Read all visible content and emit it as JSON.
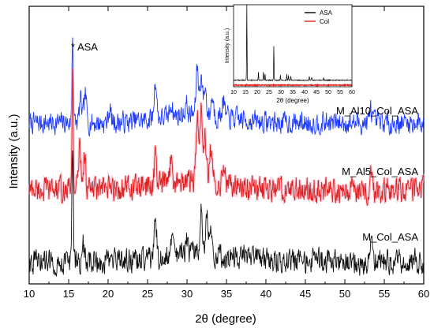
{
  "chart_data": {
    "type": "line",
    "xlabel": "2θ (degree)",
    "ylabel": "Intensity (a.u.)",
    "xlim": [
      10,
      60
    ],
    "xticks": [
      10,
      15,
      20,
      25,
      30,
      35,
      40,
      45,
      50,
      55,
      60
    ],
    "annotation": "* ASA",
    "series": [
      {
        "name": "M_Al10_Col_ASA",
        "color": "#1f3bff",
        "baseline": 0.58,
        "noise": 0.035,
        "peaks": [
          [
            15.5,
            0.32
          ],
          [
            16.5,
            0.08
          ],
          [
            17.1,
            0.1
          ],
          [
            20.2,
            0.05
          ],
          [
            26.0,
            0.14
          ],
          [
            28.0,
            0.05
          ],
          [
            29.9,
            0.04
          ],
          [
            31.3,
            0.17
          ],
          [
            31.8,
            0.14
          ],
          [
            32.3,
            0.1
          ],
          [
            33.2,
            0.07
          ],
          [
            34.6,
            0.06
          ],
          [
            53.3,
            0.05
          ]
        ]
      },
      {
        "name": "M_Al5_Col_ASA",
        "color": "#e02020",
        "baseline": 0.34,
        "noise": 0.04,
        "peaks": [
          [
            15.5,
            0.42
          ],
          [
            16.4,
            0.15
          ],
          [
            17.0,
            0.12
          ],
          [
            26.0,
            0.1
          ],
          [
            28.0,
            0.1
          ],
          [
            31.3,
            0.22
          ],
          [
            31.8,
            0.28
          ],
          [
            32.3,
            0.15
          ],
          [
            33.0,
            0.12
          ],
          [
            34.6,
            0.08
          ],
          [
            53.3,
            0.06
          ]
        ]
      },
      {
        "name": "M_Col_ASA",
        "color": "#111111",
        "baseline": 0.08,
        "noise": 0.04,
        "peaks": [
          [
            15.5,
            0.42
          ],
          [
            16.8,
            0.06
          ],
          [
            26.0,
            0.12
          ],
          [
            28.1,
            0.06
          ],
          [
            30.0,
            0.05
          ],
          [
            31.8,
            0.18
          ],
          [
            32.5,
            0.15
          ],
          [
            33.0,
            0.1
          ],
          [
            53.3,
            0.06
          ]
        ]
      }
    ],
    "inset": {
      "type": "line",
      "xlabel": "2θ (degree)",
      "ylabel": "Intensity (a.u.)",
      "xlim": [
        10,
        60
      ],
      "xticks": [
        10,
        15,
        20,
        25,
        30,
        35,
        40,
        45,
        50,
        55,
        60
      ],
      "legend": "top-right",
      "series": [
        {
          "name": "ASA",
          "color": "#000000",
          "baseline": 0.08,
          "peaks": [
            [
              15.6,
              0.92
            ],
            [
              20.5,
              0.1
            ],
            [
              22.6,
              0.1
            ],
            [
              23.3,
              0.08
            ],
            [
              27.0,
              0.42
            ],
            [
              29.8,
              0.06
            ],
            [
              32.5,
              0.08
            ],
            [
              33.2,
              0.06
            ],
            [
              34.2,
              0.05
            ],
            [
              42.0,
              0.05
            ],
            [
              43.0,
              0.04
            ],
            [
              48.0,
              0.03
            ]
          ]
        },
        {
          "name": "Col",
          "color": "#e02020",
          "baseline": 0.02,
          "peaks": []
        }
      ]
    }
  }
}
